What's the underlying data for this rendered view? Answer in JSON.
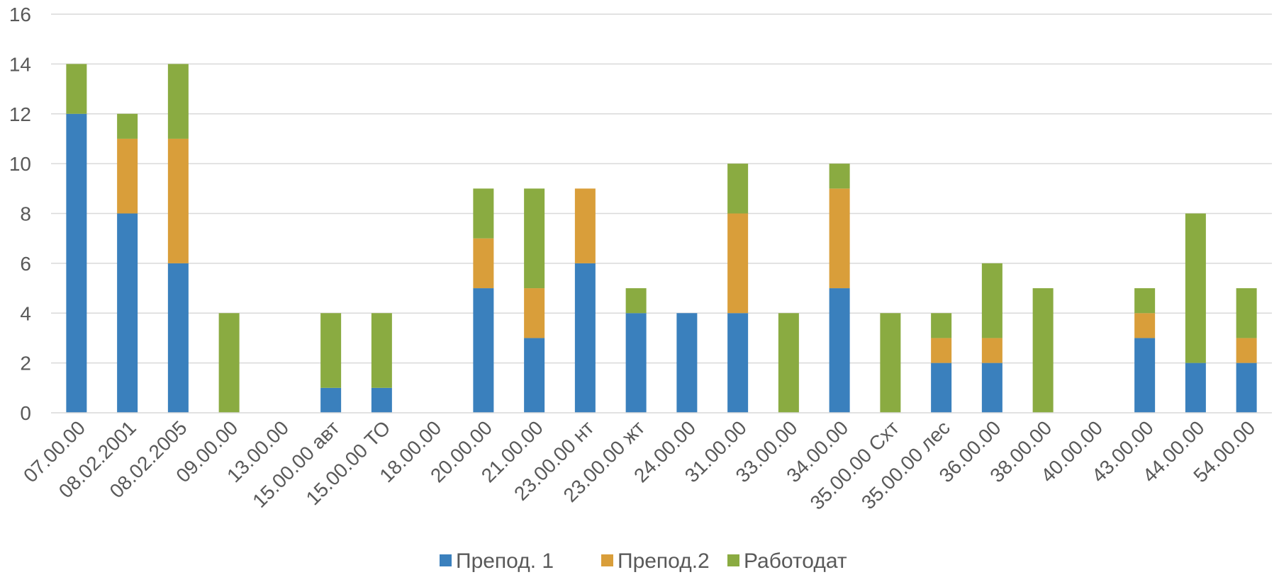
{
  "chart_data": {
    "type": "bar",
    "stacked": true,
    "categories": [
      "07.00.00",
      "08.02.2001",
      "08.02.2005",
      "09.00.00",
      "13.00.00",
      "15.00.00 авт",
      "15.00.00 ТО",
      "18.00.00",
      "20.00.00",
      "21.00.00",
      "23.00.00 нт",
      "23.00.00 жт",
      "24.00.00",
      "31.00.00",
      "33.00.00",
      "34.00.00",
      "35.00.00 Схт",
      "35.00.00 лес",
      "36.00.00",
      "38.00.00",
      "40.00.00",
      "43.00.00",
      "44.00.00",
      "54.00.00"
    ],
    "series": [
      {
        "name": "Препод. 1",
        "color": "#3a80bd",
        "values": [
          12,
          8,
          6,
          0,
          0,
          1,
          1,
          0,
          5,
          3,
          6,
          4,
          4,
          4,
          0,
          5,
          0,
          2,
          2,
          0,
          0,
          3,
          2,
          2
        ]
      },
      {
        "name": "Препод.2",
        "color": "#d99e3a",
        "values": [
          0,
          3,
          5,
          0,
          0,
          0,
          0,
          0,
          2,
          2,
          3,
          0,
          0,
          4,
          0,
          4,
          0,
          1,
          1,
          0,
          0,
          1,
          0,
          1
        ]
      },
      {
        "name": "Работодат",
        "color": "#8aab41",
        "values": [
          2,
          1,
          3,
          4,
          0,
          3,
          3,
          0,
          2,
          4,
          0,
          1,
          0,
          2,
          4,
          1,
          4,
          1,
          3,
          5,
          0,
          1,
          6,
          2
        ]
      }
    ],
    "ylim": [
      0,
      16
    ],
    "yticks": [
      "0",
      "2",
      "4",
      "6",
      "8",
      "10",
      "12",
      "14",
      "16"
    ],
    "grid": true,
    "legend_position": "bottom",
    "title": "",
    "xlabel": "",
    "ylabel": ""
  }
}
